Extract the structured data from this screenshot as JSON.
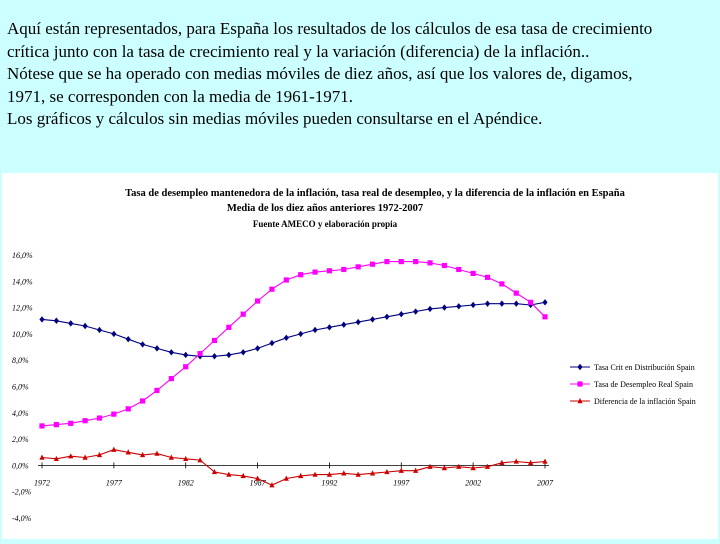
{
  "intro": {
    "lines": [
      "Aquí están representados, para España los resultados de los cálculos de esa tasa de crecimiento",
      "crítica junto con la tasa de crecimiento real y la variación (diferencia) de la inflación..",
      "Nótese que se ha operado con medias móviles de diez años, así que los valores de, digamos,",
      "1971, se corresponden con la media de 1961-1971.",
      "Los gráficos y cálculos sin medias móviles pueden consultarse en el Apéndice."
    ]
  },
  "chart_data": {
    "type": "line",
    "title": "Tasa de desempleo mantenedora de la inflación,  tasa real de desempleo, y la diferencia de la inflación en España",
    "subtitle": "Media de los diez años anteriores 1972-2007",
    "source": "Fuente AMECO y elaboración propia",
    "xlabel": "",
    "ylabel": "",
    "ylim": [
      -4,
      16
    ],
    "yticks": [
      "16,0%",
      "14,0%",
      "12,0%",
      "10,0%",
      "8,0%",
      "6,0%",
      "4,0%",
      "2,0%",
      "0,0%",
      "-2,0%",
      "-4,0%"
    ],
    "ytick_values": [
      16,
      14,
      12,
      10,
      8,
      6,
      4,
      2,
      0,
      -2,
      -4
    ],
    "xticks": [
      "1972",
      "1977",
      "1982",
      "1987",
      "1992",
      "1997",
      "2002",
      "2007"
    ],
    "xtick_values": [
      1972,
      1977,
      1982,
      1987,
      1992,
      1997,
      2002,
      2007
    ],
    "x": [
      1972,
      1973,
      1974,
      1975,
      1976,
      1977,
      1978,
      1979,
      1980,
      1981,
      1982,
      1983,
      1984,
      1985,
      1986,
      1987,
      1988,
      1989,
      1990,
      1991,
      1992,
      1993,
      1994,
      1995,
      1996,
      1997,
      1998,
      1999,
      2000,
      2001,
      2002,
      2003,
      2004,
      2005,
      2006,
      2007
    ],
    "grid": false,
    "legend": "right",
    "series": [
      {
        "name": "Tasa Crit en Distribución Spain",
        "color": "#000080",
        "marker": "diamond",
        "values": [
          11.1,
          11.0,
          10.8,
          10.6,
          10.3,
          10.0,
          9.6,
          9.2,
          8.9,
          8.6,
          8.4,
          8.3,
          8.3,
          8.4,
          8.6,
          8.9,
          9.3,
          9.7,
          10.0,
          10.3,
          10.5,
          10.7,
          10.9,
          11.1,
          11.3,
          11.5,
          11.7,
          11.9,
          12.0,
          12.1,
          12.2,
          12.3,
          12.3,
          12.3,
          12.2,
          12.4
        ]
      },
      {
        "name": "Tasa de Desempleo Real Spain",
        "color": "#ff00ff",
        "marker": "square",
        "values": [
          3.0,
          3.1,
          3.2,
          3.4,
          3.6,
          3.9,
          4.3,
          4.9,
          5.7,
          6.6,
          7.5,
          8.5,
          9.5,
          10.5,
          11.5,
          12.5,
          13.4,
          14.1,
          14.5,
          14.7,
          14.8,
          14.9,
          15.1,
          15.3,
          15.5,
          15.5,
          15.5,
          15.4,
          15.2,
          14.9,
          14.6,
          14.3,
          13.8,
          13.1,
          12.4,
          11.3
        ]
      },
      {
        "name": "Diferencia de la inflación Spain",
        "color": "#cc0000",
        "marker": "triangle",
        "values": [
          0.6,
          0.5,
          0.7,
          0.6,
          0.8,
          1.2,
          1.0,
          0.8,
          0.9,
          0.6,
          0.5,
          0.4,
          -0.5,
          -0.7,
          -0.8,
          -1.0,
          -1.5,
          -1.0,
          -0.8,
          -0.7,
          -0.7,
          -0.6,
          -0.7,
          -0.6,
          -0.5,
          -0.4,
          -0.4,
          -0.1,
          -0.2,
          -0.1,
          -0.2,
          -0.1,
          0.2,
          0.3,
          0.2,
          0.3
        ]
      }
    ]
  }
}
